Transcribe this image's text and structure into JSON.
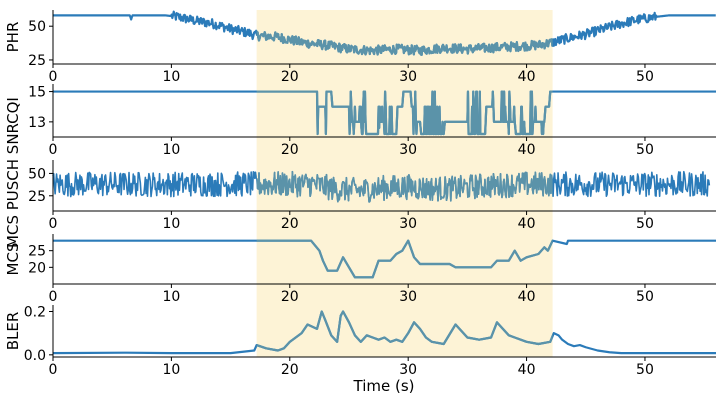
{
  "chart_data": {
    "type": "line",
    "xlabel": "Time (s)",
    "xlim": [
      0,
      56
    ],
    "xticks": [
      0,
      10,
      20,
      30,
      40,
      50
    ],
    "highlight": {
      "x_start": 17.2,
      "x_end": 42.2,
      "color": "#fdf3d6"
    },
    "colors": {
      "line": "#2b7bb9",
      "line_in_highlight": "#5b93a9"
    },
    "panels": [
      {
        "ylabel": "PHR",
        "ylim": [
          22,
          62
        ],
        "yticks": [
          25,
          50
        ],
        "points": [
          [
            0,
            58
          ],
          [
            6.5,
            58
          ],
          [
            6.6,
            55
          ],
          [
            6.7,
            58
          ],
          [
            9.5,
            58
          ],
          [
            10.5,
            57
          ],
          [
            12,
            54
          ],
          [
            13.5,
            52
          ],
          [
            15,
            48
          ],
          [
            16.5,
            45
          ],
          [
            17.2,
            43
          ],
          [
            19,
            42
          ],
          [
            21,
            38
          ],
          [
            23,
            36
          ],
          [
            25,
            33
          ],
          [
            27,
            32
          ],
          [
            29,
            33
          ],
          [
            31,
            32
          ],
          [
            33,
            34
          ],
          [
            35,
            33
          ],
          [
            37,
            34
          ],
          [
            39,
            35
          ],
          [
            41,
            36
          ],
          [
            42.2,
            38
          ],
          [
            43.5,
            41
          ],
          [
            45,
            44
          ],
          [
            46.5,
            48
          ],
          [
            48,
            52
          ],
          [
            49.5,
            55
          ],
          [
            51,
            57
          ],
          [
            52,
            58
          ],
          [
            56,
            58
          ]
        ],
        "noise": 3.5,
        "noise_start": 10.0,
        "noise_end": 51.0
      },
      {
        "ylabel": "CQI",
        "ylim": [
          12,
          15.5
        ],
        "yticks": [
          13,
          15
        ],
        "points": [
          [
            0,
            15
          ],
          [
            22.3,
            15
          ],
          [
            22.4,
            14
          ],
          [
            23,
            14
          ],
          [
            23.1,
            15
          ],
          [
            23.5,
            15
          ],
          [
            23.6,
            14
          ],
          [
            25,
            14
          ],
          [
            25.1,
            13
          ],
          [
            26,
            13
          ],
          [
            26.1,
            12.2
          ],
          [
            27.5,
            12.2
          ],
          [
            27.6,
            13
          ],
          [
            28,
            13
          ],
          [
            28.1,
            12.2
          ],
          [
            29,
            12.2
          ],
          [
            29.1,
            14
          ],
          [
            29.5,
            14
          ],
          [
            29.6,
            15
          ],
          [
            30.2,
            15
          ],
          [
            30.3,
            14
          ],
          [
            30.5,
            14
          ],
          [
            30.6,
            13
          ],
          [
            31,
            13
          ],
          [
            31.1,
            12.2
          ],
          [
            33,
            12.2
          ],
          [
            33.1,
            13
          ],
          [
            35,
            13
          ],
          [
            35.1,
            12.2
          ],
          [
            36.5,
            12.2
          ],
          [
            36.6,
            14
          ],
          [
            37,
            14
          ],
          [
            37.1,
            13
          ],
          [
            39,
            13
          ],
          [
            39.1,
            12.2
          ],
          [
            40.5,
            12.2
          ],
          [
            40.6,
            13
          ],
          [
            41.5,
            13
          ],
          [
            41.6,
            14
          ],
          [
            41.9,
            14
          ],
          [
            42,
            15
          ],
          [
            56,
            15
          ]
        ],
        "flicker_ranges": [
          [
            22.3,
            23.2
          ],
          [
            25,
            26.5
          ],
          [
            27.5,
            29
          ],
          [
            30.4,
            33
          ],
          [
            35,
            36.5
          ],
          [
            37,
            41.5
          ]
        ],
        "flicker_levels": [
          12.2,
          13,
          14,
          15
        ]
      },
      {
        "ylabel": "MCS PUSCH SNR",
        "ylim": [
          8,
          65
        ],
        "yticks": [
          25,
          50
        ],
        "points": [
          [
            0,
            38
          ],
          [
            17.2,
            38
          ],
          [
            22,
            38
          ],
          [
            24,
            32
          ],
          [
            26,
            31
          ],
          [
            28,
            34
          ],
          [
            30,
            35
          ],
          [
            32,
            33
          ],
          [
            34,
            33
          ],
          [
            36,
            36
          ],
          [
            38,
            37
          ],
          [
            40,
            38
          ],
          [
            42.2,
            38
          ],
          [
            56,
            38
          ]
        ],
        "noise": 14,
        "noise_start": 0,
        "noise_end": 55.5
      },
      {
        "ylabel": "MCS",
        "ylim": [
          15,
          30
        ],
        "yticks": [
          20,
          25
        ],
        "points": [
          [
            0,
            28
          ],
          [
            21.8,
            28
          ],
          [
            22.5,
            25
          ],
          [
            22.8,
            22
          ],
          [
            23.2,
            19
          ],
          [
            24,
            19
          ],
          [
            24.5,
            23
          ],
          [
            25,
            20
          ],
          [
            25.5,
            17
          ],
          [
            27,
            17
          ],
          [
            27.5,
            22
          ],
          [
            28.5,
            22
          ],
          [
            29,
            24
          ],
          [
            29.5,
            25
          ],
          [
            30,
            28
          ],
          [
            30.5,
            23
          ],
          [
            31,
            21
          ],
          [
            33.5,
            21
          ],
          [
            34,
            20
          ],
          [
            37,
            20
          ],
          [
            37.5,
            22
          ],
          [
            38.5,
            22
          ],
          [
            39,
            25
          ],
          [
            39.5,
            22
          ],
          [
            40,
            23
          ],
          [
            41,
            24
          ],
          [
            41.5,
            26
          ],
          [
            41.8,
            25
          ],
          [
            42.2,
            28
          ],
          [
            43.4,
            27
          ],
          [
            43.5,
            28
          ],
          [
            56,
            28
          ]
        ]
      },
      {
        "ylabel": "BLER",
        "ylim": [
          -0.01,
          0.23
        ],
        "yticks": [
          0.0,
          0.2
        ],
        "yticklabels": [
          "0.0",
          "0.2"
        ],
        "points": [
          [
            0,
            0.008
          ],
          [
            6,
            0.01
          ],
          [
            10,
            0.008
          ],
          [
            15,
            0.008
          ],
          [
            17,
            0.02
          ],
          [
            17.2,
            0.045
          ],
          [
            18,
            0.03
          ],
          [
            19,
            0.02
          ],
          [
            19.5,
            0.03
          ],
          [
            20,
            0.06
          ],
          [
            21,
            0.1
          ],
          [
            21.5,
            0.14
          ],
          [
            22.3,
            0.12
          ],
          [
            22.7,
            0.2
          ],
          [
            23,
            0.16
          ],
          [
            23.5,
            0.09
          ],
          [
            24,
            0.06
          ],
          [
            24.3,
            0.18
          ],
          [
            24.5,
            0.2
          ],
          [
            25,
            0.15
          ],
          [
            25.5,
            0.09
          ],
          [
            26,
            0.06
          ],
          [
            26.5,
            0.09
          ],
          [
            27,
            0.08
          ],
          [
            27.5,
            0.07
          ],
          [
            28,
            0.08
          ],
          [
            28.5,
            0.06
          ],
          [
            29,
            0.07
          ],
          [
            29.5,
            0.06
          ],
          [
            30,
            0.1
          ],
          [
            30.5,
            0.15
          ],
          [
            31,
            0.12
          ],
          [
            31.5,
            0.08
          ],
          [
            32,
            0.06
          ],
          [
            33,
            0.05
          ],
          [
            34,
            0.14
          ],
          [
            34.5,
            0.11
          ],
          [
            35,
            0.08
          ],
          [
            36,
            0.07
          ],
          [
            37,
            0.08
          ],
          [
            37.5,
            0.15
          ],
          [
            38,
            0.12
          ],
          [
            38.5,
            0.09
          ],
          [
            39,
            0.08
          ],
          [
            40,
            0.06
          ],
          [
            41,
            0.05
          ],
          [
            42,
            0.06
          ],
          [
            42.3,
            0.1
          ],
          [
            42.7,
            0.09
          ],
          [
            43,
            0.07
          ],
          [
            43.5,
            0.05
          ],
          [
            44,
            0.04
          ],
          [
            44.5,
            0.045
          ],
          [
            45,
            0.035
          ],
          [
            46,
            0.02
          ],
          [
            47,
            0.012
          ],
          [
            48,
            0.008
          ],
          [
            56,
            0.008
          ]
        ]
      }
    ]
  }
}
